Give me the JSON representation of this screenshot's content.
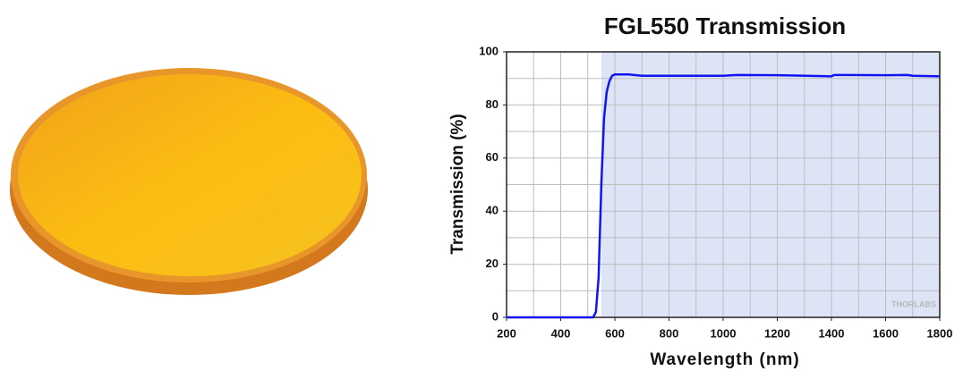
{
  "chart_data": {
    "type": "line",
    "title": "FGL550 Transmission",
    "x_label": "Wavelength (nm)",
    "y_label": "Transmission (%)",
    "watermark": "THORLABS",
    "x": [
      200,
      520,
      530,
      540,
      550,
      560,
      570,
      580,
      590,
      600,
      650,
      700,
      800,
      1000,
      1050,
      1200,
      1400,
      1410,
      1450,
      1600,
      1680,
      1700,
      1800
    ],
    "series": [
      {
        "name": "FGL550",
        "color": "#1414f0",
        "values": [
          0,
          0,
          2,
          15,
          50,
          75,
          85,
          89,
          91,
          91.5,
          91.5,
          91,
          91,
          91,
          91.3,
          91.2,
          90.8,
          91.3,
          91.3,
          91.2,
          91.3,
          91,
          90.8
        ]
      }
    ],
    "xlim": [
      200,
      1800
    ],
    "ylim": [
      0,
      100
    ],
    "xticks": [
      200,
      400,
      600,
      800,
      1000,
      1200,
      1400,
      1600,
      1800
    ],
    "yticks": [
      0,
      20,
      40,
      60,
      80,
      100
    ],
    "xgrid": [
      300,
      400,
      500,
      600,
      700,
      800,
      900,
      1000,
      1100,
      1200,
      1300,
      1400,
      1500,
      1600,
      1700
    ],
    "ygrid": [
      10,
      20,
      30,
      40,
      50,
      60,
      70,
      80,
      90
    ],
    "highlight_x": [
      550,
      1800
    ],
    "highlight_color": "#dce4f6",
    "grid": true
  }
}
